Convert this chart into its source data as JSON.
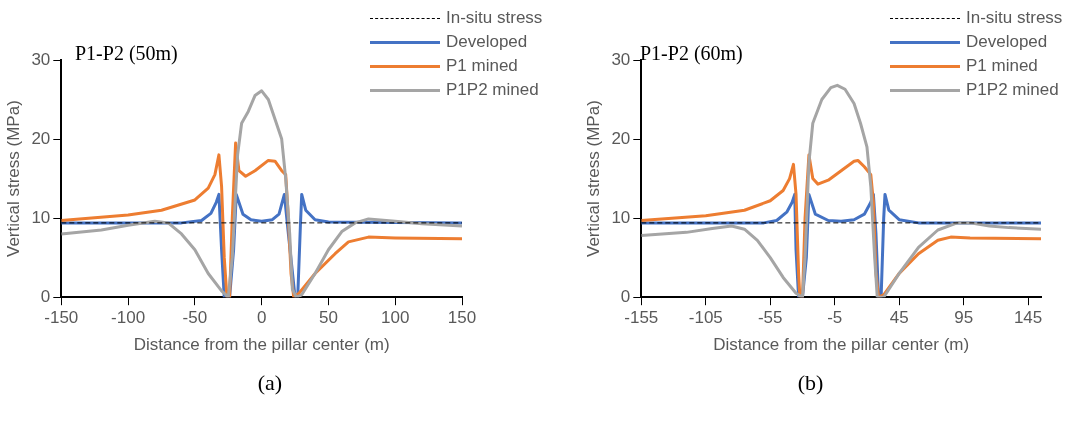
{
  "chart_data": [
    {
      "type": "line",
      "title": "P1-P2 (50m)",
      "xlabel": "Distance from the pillar center (m)",
      "ylabel": "Vertical stress (MPa)",
      "xlim": [
        -150,
        150
      ],
      "xticks": [
        -150,
        -100,
        -50,
        0,
        50,
        100,
        150
      ],
      "ylim": [
        0,
        30
      ],
      "yticks": [
        0,
        10,
        20,
        30
      ],
      "grid": false,
      "legend": "top right",
      "marker": "none",
      "annotations": [
        "(a)"
      ],
      "series": [
        {
          "name": "In-situ stress",
          "color": "#000000",
          "line_style": "dashed",
          "x": [
            -150,
            150
          ],
          "values": [
            9.4,
            9.4
          ]
        },
        {
          "name": "Developed",
          "color": "#4472c4",
          "x": [
            -150,
            -60,
            -45,
            -38,
            -34,
            -32,
            -30,
            -28,
            -24,
            -21,
            -19,
            -14,
            -8,
            0,
            8,
            13,
            17,
            20,
            25,
            27,
            29,
            30,
            33,
            40,
            50,
            150
          ],
          "values": [
            9.4,
            9.4,
            9.7,
            10.6,
            12,
            13,
            6,
            0,
            0,
            6,
            13,
            10.5,
            9.8,
            9.6,
            9.8,
            10.5,
            13,
            8,
            0,
            0,
            9,
            13,
            11,
            9.8,
            9.5,
            9.4
          ]
        },
        {
          "name": "P1 mined",
          "color": "#ed7d31",
          "x": [
            -150,
            -100,
            -75,
            -50,
            -40,
            -35,
            -32,
            -30,
            -28,
            -26,
            -24,
            -22,
            -19.5,
            -17,
            -12,
            -5,
            5,
            10,
            15,
            18,
            20,
            22,
            24,
            28,
            40,
            55,
            65,
            80,
            100,
            150
          ],
          "values": [
            9.7,
            10.4,
            11,
            12.3,
            13.8,
            15.5,
            18,
            14,
            5,
            0,
            0,
            10,
            19.5,
            16,
            15.3,
            16,
            17.3,
            17.2,
            16,
            15.5,
            10,
            3,
            0,
            0.5,
            3,
            5.5,
            7,
            7.6,
            7.5,
            7.4
          ]
        },
        {
          "name": "P1P2 mined",
          "color": "#a5a5a5",
          "x": [
            -150,
            -120,
            -100,
            -80,
            -70,
            -60,
            -50,
            -40,
            -30,
            -25,
            -22,
            -18,
            -15,
            -10,
            -5,
            0,
            5,
            10,
            15,
            18,
            21,
            23,
            26,
            30,
            40,
            50,
            60,
            70,
            80,
            100,
            120,
            150
          ],
          "values": [
            8,
            8.5,
            9.1,
            9.6,
            9.4,
            8,
            6,
            3,
            0.8,
            0,
            5,
            18,
            22,
            23.5,
            25.5,
            26.1,
            25,
            22.5,
            20,
            15,
            8,
            1,
            0,
            0.3,
            3,
            6,
            8.3,
            9.4,
            9.9,
            9.6,
            9.3,
            9
          ]
        }
      ]
    },
    {
      "type": "line",
      "title": "P1-P2 (60m)",
      "xlabel": "Distance from the pillar center (m)",
      "ylabel": "Vertical stress (MPa)",
      "xlim": [
        -155,
        155
      ],
      "xticks": [
        -155,
        -105,
        -55,
        -5,
        45,
        95,
        145
      ],
      "ylim": [
        0,
        30
      ],
      "yticks": [
        0,
        10,
        20,
        30
      ],
      "grid": false,
      "legend": "top right",
      "marker": "none",
      "annotations": [
        "(b)"
      ],
      "series": [
        {
          "name": "In-situ stress",
          "color": "#000000",
          "line_style": "dashed",
          "x": [
            -155,
            155
          ],
          "values": [
            9.4,
            9.4
          ]
        },
        {
          "name": "Developed",
          "color": "#4472c4",
          "x": [
            -155,
            -60,
            -50,
            -42,
            -38,
            -36,
            -35,
            -33,
            -30,
            -27,
            -25,
            -20,
            -10,
            0,
            10,
            18,
            23,
            25,
            27,
            29,
            31,
            33,
            34,
            37,
            45,
            60,
            155
          ],
          "values": [
            9.4,
            9.4,
            9.7,
            10.8,
            12,
            13,
            6,
            0,
            0,
            5,
            13,
            10.5,
            9.7,
            9.6,
            9.8,
            10.5,
            12,
            13,
            8,
            0,
            0,
            10,
            13,
            11,
            9.8,
            9.4,
            9.4
          ]
        },
        {
          "name": "P1 mined",
          "color": "#ed7d31",
          "x": [
            -155,
            -105,
            -75,
            -55,
            -45,
            -40,
            -37,
            -35,
            -33,
            -32,
            -30,
            -28,
            -25,
            -22,
            -18,
            -10,
            0,
            10,
            13,
            18,
            23,
            25,
            27,
            29,
            33,
            45,
            60,
            75,
            85,
            100,
            155
          ],
          "values": [
            9.7,
            10.3,
            11,
            12.2,
            13.5,
            15,
            16.8,
            13,
            3,
            0,
            0,
            10,
            18,
            15,
            14.3,
            14.8,
            16,
            17.2,
            17.3,
            16.5,
            15.5,
            12,
            3,
            0,
            0.3,
            3,
            5.5,
            7.2,
            7.6,
            7.5,
            7.4
          ]
        },
        {
          "name": "P1P2 mined",
          "color": "#a5a5a5",
          "x": [
            -155,
            -120,
            -100,
            -85,
            -75,
            -65,
            -55,
            -45,
            -35,
            -30,
            -28,
            -25,
            -22,
            -15,
            -8,
            -3,
            3,
            10,
            15,
            20,
            23,
            26,
            28,
            33,
            45,
            60,
            75,
            90,
            100,
            115,
            130,
            155
          ],
          "values": [
            7.8,
            8.2,
            8.7,
            9,
            8.6,
            7.2,
            5,
            2.5,
            0.5,
            0,
            5,
            17,
            22,
            25,
            26.5,
            26.8,
            26.3,
            24.5,
            22,
            19,
            14,
            5,
            0,
            0,
            3,
            6.3,
            8.5,
            9.4,
            9.4,
            9,
            8.8,
            8.6
          ]
        }
      ]
    }
  ]
}
